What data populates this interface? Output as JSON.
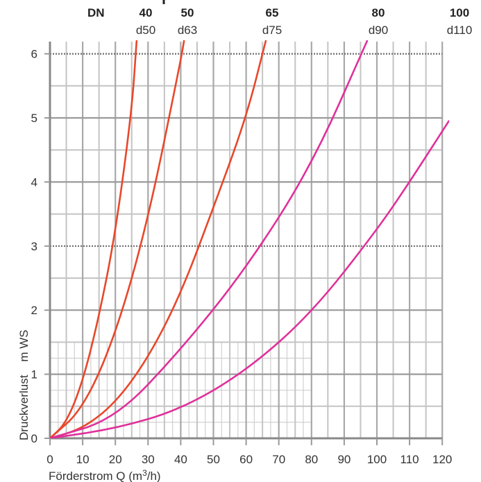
{
  "chart_data": {
    "type": "line",
    "title": "",
    "xlabel": "Förderstrom Q (m³/h)",
    "xlabel_main": "Förderstrom Q (m",
    "xlabel_sup": "3",
    "xlabel_tail": "/h)",
    "ylabel": "Druckverlust    m WS",
    "xlim": [
      0,
      120
    ],
    "ylim": [
      0,
      6.2
    ],
    "xticks": [
      "0",
      "10",
      "20",
      "30",
      "40",
      "50",
      "60",
      "70",
      "80",
      "90",
      "100",
      "110",
      "120"
    ],
    "yticks": [
      "0",
      "1",
      "2",
      "3",
      "4",
      "5",
      "6"
    ],
    "dn_label": "DN",
    "grid": true,
    "colors": {
      "dn40_65": "#e8472a",
      "dn80_100": "#e0309a",
      "grid": "#b8b8b8",
      "axis": "#888888"
    },
    "series": [
      {
        "name": "40",
        "sub": "d50",
        "color": "#e8472a",
        "x": [
          0,
          5,
          10,
          15,
          20,
          25,
          26.5
        ],
        "y": [
          0,
          0.24,
          0.88,
          1.9,
          3.2,
          5.1,
          6.2
        ]
      },
      {
        "name": "50",
        "sub": "d63",
        "color": "#e8472a",
        "x": [
          0,
          10,
          20,
          30,
          40,
          41
        ],
        "y": [
          0,
          0.45,
          1.6,
          3.4,
          5.9,
          6.2
        ]
      },
      {
        "name": "65",
        "sub": "d75",
        "color": "#e8472a",
        "x": [
          0,
          10,
          20,
          30,
          40,
          50,
          60,
          66
        ],
        "y": [
          0,
          0.15,
          0.55,
          1.25,
          2.25,
          3.6,
          5.0,
          6.2
        ]
      },
      {
        "name": "80",
        "sub": "d90",
        "color": "#e0309a",
        "x": [
          0,
          20,
          40,
          60,
          80,
          97
        ],
        "y": [
          0,
          0.3,
          1.38,
          2.65,
          4.25,
          6.2
        ]
      },
      {
        "name": "100",
        "sub": "d110",
        "color": "#e0309a",
        "x": [
          0,
          20,
          40,
          60,
          80,
          100,
          110,
          122
        ],
        "y": [
          0,
          0.15,
          0.45,
          1.05,
          1.95,
          3.25,
          4.0,
          4.95
        ]
      }
    ]
  }
}
